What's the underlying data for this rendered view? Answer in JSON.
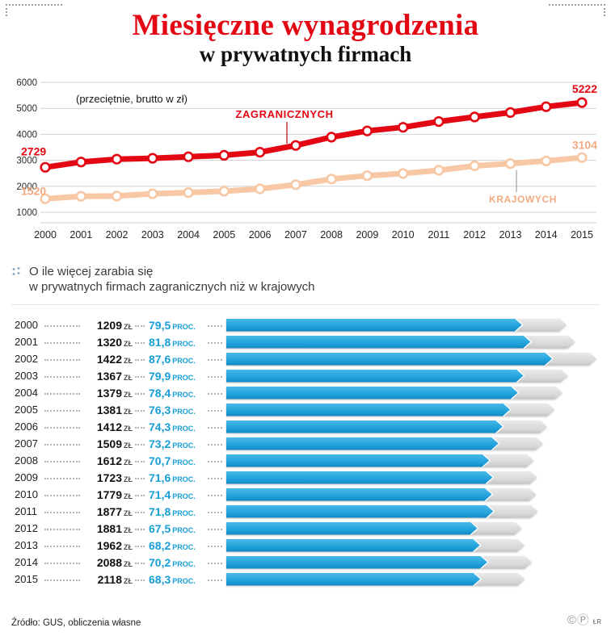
{
  "header": {
    "title_line1": "Miesięczne wynagrodzenia",
    "title_line2": "w prywatnych firmach"
  },
  "middle": {
    "line1": "O ile więcej zarabia się",
    "line2": "w prywatnych firmach zagranicznych niż w krajowych"
  },
  "footer": {
    "source": "Źródło: GUS, obliczenia własne",
    "marks": "©Ⓟ",
    "credit": "ŁR"
  },
  "chart_data": [
    {
      "type": "line",
      "title": "Miesięczne wynagrodzenia w prywatnych firmach",
      "note": "(przeciętnie, brutto w zł)",
      "x": [
        "2000",
        "2001",
        "2002",
        "2003",
        "2004",
        "2005",
        "2006",
        "2007",
        "2008",
        "2009",
        "2010",
        "2011",
        "2012",
        "2013",
        "2014",
        "2015"
      ],
      "series": [
        {
          "name": "ZAGRANICZNYCH",
          "color": "#e30613",
          "values": [
            2729,
            2934,
            3045,
            3078,
            3138,
            3191,
            3312,
            3570,
            3892,
            4129,
            4270,
            4491,
            4668,
            4839,
            5062,
            5222
          ]
        },
        {
          "name": "KRAJOWYCH",
          "color": "#f8c7a4",
          "values": [
            1520,
            1614,
            1623,
            1711,
            1759,
            1810,
            1900,
            2061,
            2280,
            2406,
            2491,
            2614,
            2787,
            2877,
            2974,
            3104
          ]
        }
      ],
      "endpoint_labels": {
        "foreign_start": "2729",
        "foreign_end": "5222",
        "domestic_start": "1520",
        "domestic_end": "3104"
      },
      "y_ticks": [
        1000,
        2000,
        3000,
        4000,
        5000,
        6000
      ],
      "ylim": [
        1000,
        6000
      ],
      "grid": true,
      "legend_position": "inline-annotations"
    },
    {
      "type": "bar",
      "title": "O ile więcej zarabia się w prywatnych firmach zagranicznych niż w krajowych",
      "categories": [
        "2000",
        "2001",
        "2002",
        "2003",
        "2004",
        "2005",
        "2006",
        "2007",
        "2008",
        "2009",
        "2010",
        "2011",
        "2012",
        "2013",
        "2014",
        "2015"
      ],
      "series": [
        {
          "name": "ZŁ",
          "values": [
            1209,
            1320,
            1422,
            1367,
            1379,
            1381,
            1412,
            1509,
            1612,
            1723,
            1779,
            1877,
            1881,
            1962,
            2088,
            2118
          ]
        },
        {
          "name": "PROC.",
          "values": [
            79.5,
            81.8,
            87.6,
            79.9,
            78.4,
            76.3,
            74.3,
            73.2,
            70.7,
            71.6,
            71.4,
            71.8,
            67.5,
            68.2,
            70.2,
            68.3
          ]
        }
      ],
      "pct_display": [
        "79,5",
        "81,8",
        "87,6",
        "79,9",
        "78,4",
        "76,3",
        "74,3",
        "73,2",
        "70,7",
        "71,6",
        "71,4",
        "71,8",
        "67,5",
        "68,2",
        "70,2",
        "68,3"
      ],
      "unit_value": "ZŁ",
      "unit_pct": "PROC.",
      "bar_color": "#1f9fd9",
      "track_color": "#d5d5d5",
      "xlim_pct": [
        0,
        100
      ]
    }
  ]
}
